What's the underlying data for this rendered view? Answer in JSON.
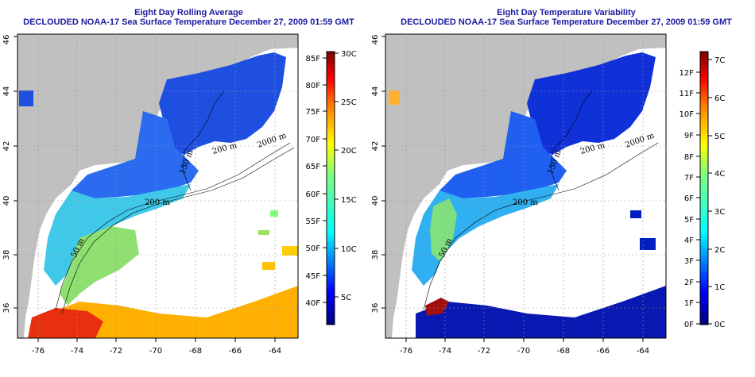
{
  "left_map": {
    "title": "Eight Day Rolling Average",
    "subtitle": "DECLOUDED NOAA-17 Sea Surface Temperature December 27, 2009 01:59 GMT",
    "x_ticks": [
      "-76",
      "-74",
      "-72",
      "-70",
      "-68",
      "-66",
      "-64"
    ],
    "y_ticks": [
      "36",
      "38",
      "40",
      "42",
      "44",
      "46"
    ],
    "contour_labels": [
      "50 m",
      "200 m",
      "150 m",
      "200 m",
      "2000 m"
    ],
    "colorbar_f": [
      "85F",
      "80F",
      "75F",
      "70F",
      "65F",
      "60F",
      "55F",
      "50F",
      "45F",
      "40F"
    ],
    "colorbar_c": [
      "30C",
      "25C",
      "20C",
      "15C",
      "10C",
      "5C"
    ]
  },
  "right_map": {
    "title": "Eight Day Temperature Variability",
    "subtitle": "DECLOUDED NOAA-17 Sea Surface Temperature December 27, 2009 01:59 GMT",
    "x_ticks": [
      "-76",
      "-74",
      "-72",
      "-70",
      "-68",
      "-66",
      "-64"
    ],
    "y_ticks": [
      "36",
      "38",
      "40",
      "42",
      "44",
      "46"
    ],
    "contour_labels": [
      "50 m",
      "200 m",
      "150 m",
      "200 m",
      "2000 m"
    ],
    "colorbar_f": [
      "12F",
      "11F",
      "10F",
      "9F",
      "8F",
      "7F",
      "6F",
      "5F",
      "4F",
      "3F",
      "2F",
      "1F",
      "0F"
    ],
    "colorbar_c": [
      "7C",
      "6C",
      "5C",
      "4C",
      "3C",
      "2C",
      "1C",
      "0C"
    ]
  },
  "colors": {
    "land": "#c0c0c0",
    "title": "#1a1aa0",
    "colormap": [
      "#00007f",
      "#0000ff",
      "#007fff",
      "#00ffff",
      "#7fff7f",
      "#ffff00",
      "#ff7f00",
      "#ff0000",
      "#7f0000"
    ]
  }
}
